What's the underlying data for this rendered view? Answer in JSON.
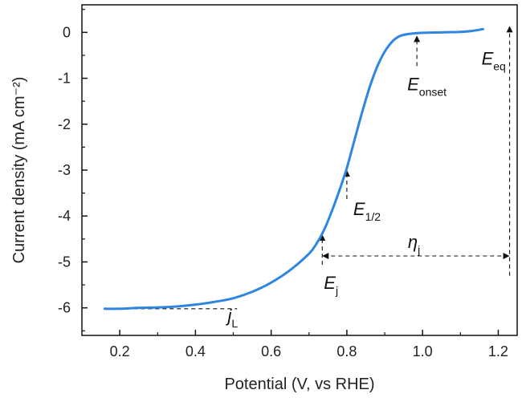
{
  "chart_data": {
    "type": "line",
    "title": "",
    "xlabel": "Potential (V, vs RHE)",
    "ylabel": "Current density (mA cm⁻²)",
    "xlim": [
      0.1,
      1.25
    ],
    "ylim": [
      -6.6,
      0.6
    ],
    "xticks": [
      0.2,
      0.4,
      0.6,
      0.8,
      1.0,
      1.2
    ],
    "xtick_labels": [
      "0.2",
      "0.4",
      "0.6",
      "0.8",
      "1.0",
      "1.2"
    ],
    "yticks": [
      0,
      -1,
      -2,
      -3,
      -4,
      -5,
      -6
    ],
    "ytick_labels": [
      "0",
      "-1",
      "-2",
      "-3",
      "-4",
      "-5",
      "-6"
    ],
    "grid": false,
    "series": [
      {
        "color": "#2f86e0",
        "x": [
          0.16,
          0.2,
          0.25,
          0.3,
          0.35,
          0.4,
          0.45,
          0.5,
          0.55,
          0.6,
          0.65,
          0.7,
          0.72,
          0.74,
          0.76,
          0.78,
          0.8,
          0.82,
          0.84,
          0.86,
          0.88,
          0.9,
          0.92,
          0.94,
          0.96,
          0.98,
          1.0,
          1.05,
          1.1,
          1.13,
          1.16
        ],
        "y": [
          -6.02,
          -6.02,
          -6.0,
          -5.99,
          -5.97,
          -5.93,
          -5.87,
          -5.79,
          -5.65,
          -5.45,
          -5.18,
          -4.82,
          -4.6,
          -4.3,
          -3.9,
          -3.45,
          -2.95,
          -2.35,
          -1.75,
          -1.2,
          -0.75,
          -0.42,
          -0.2,
          -0.08,
          -0.04,
          -0.02,
          -0.01,
          0.0,
          0.01,
          0.03,
          0.07
        ]
      }
    ],
    "annotations": [
      {
        "main": "E",
        "sub": "onset",
        "x": 0.985,
        "y": 0.0
      },
      {
        "main": "E",
        "sub": "eq",
        "x": 1.23,
        "y": 0.0
      },
      {
        "main": "E",
        "sub": "1/2",
        "x": 0.8,
        "y": -3.0
      },
      {
        "main": "E",
        "sub": "j",
        "x": 0.735,
        "y": -4.4
      },
      {
        "main": "η",
        "sub": "j"
      },
      {
        "main": "j",
        "sub": "L",
        "y": -6.02
      }
    ]
  }
}
